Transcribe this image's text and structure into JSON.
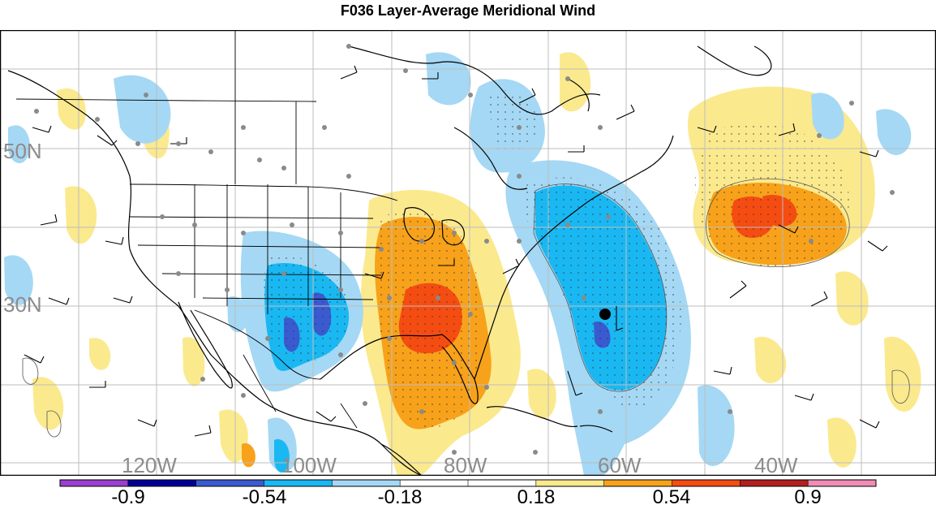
{
  "title": "F036 Layer-Average Meridional Wind",
  "map": {
    "lat_labels": [
      "50N",
      "30N"
    ],
    "lon_labels": [
      "120W",
      "100W",
      "80W",
      "60W",
      "40W"
    ],
    "marker_icon": "storm-center-dot-icon"
  },
  "colorbar": {
    "colors": [
      "#9a3fd0",
      "#000096",
      "#3a5ad0",
      "#19b8f2",
      "#a5d8f4",
      "#ffffff",
      "#ffffff",
      "#fbe98e",
      "#f7a21a",
      "#f54c12",
      "#b31e1e",
      "#f08cb6"
    ],
    "tick_labels": [
      "-0.9",
      "-0.54",
      "-0.18",
      "0.18",
      "0.54",
      "0.9"
    ]
  }
}
